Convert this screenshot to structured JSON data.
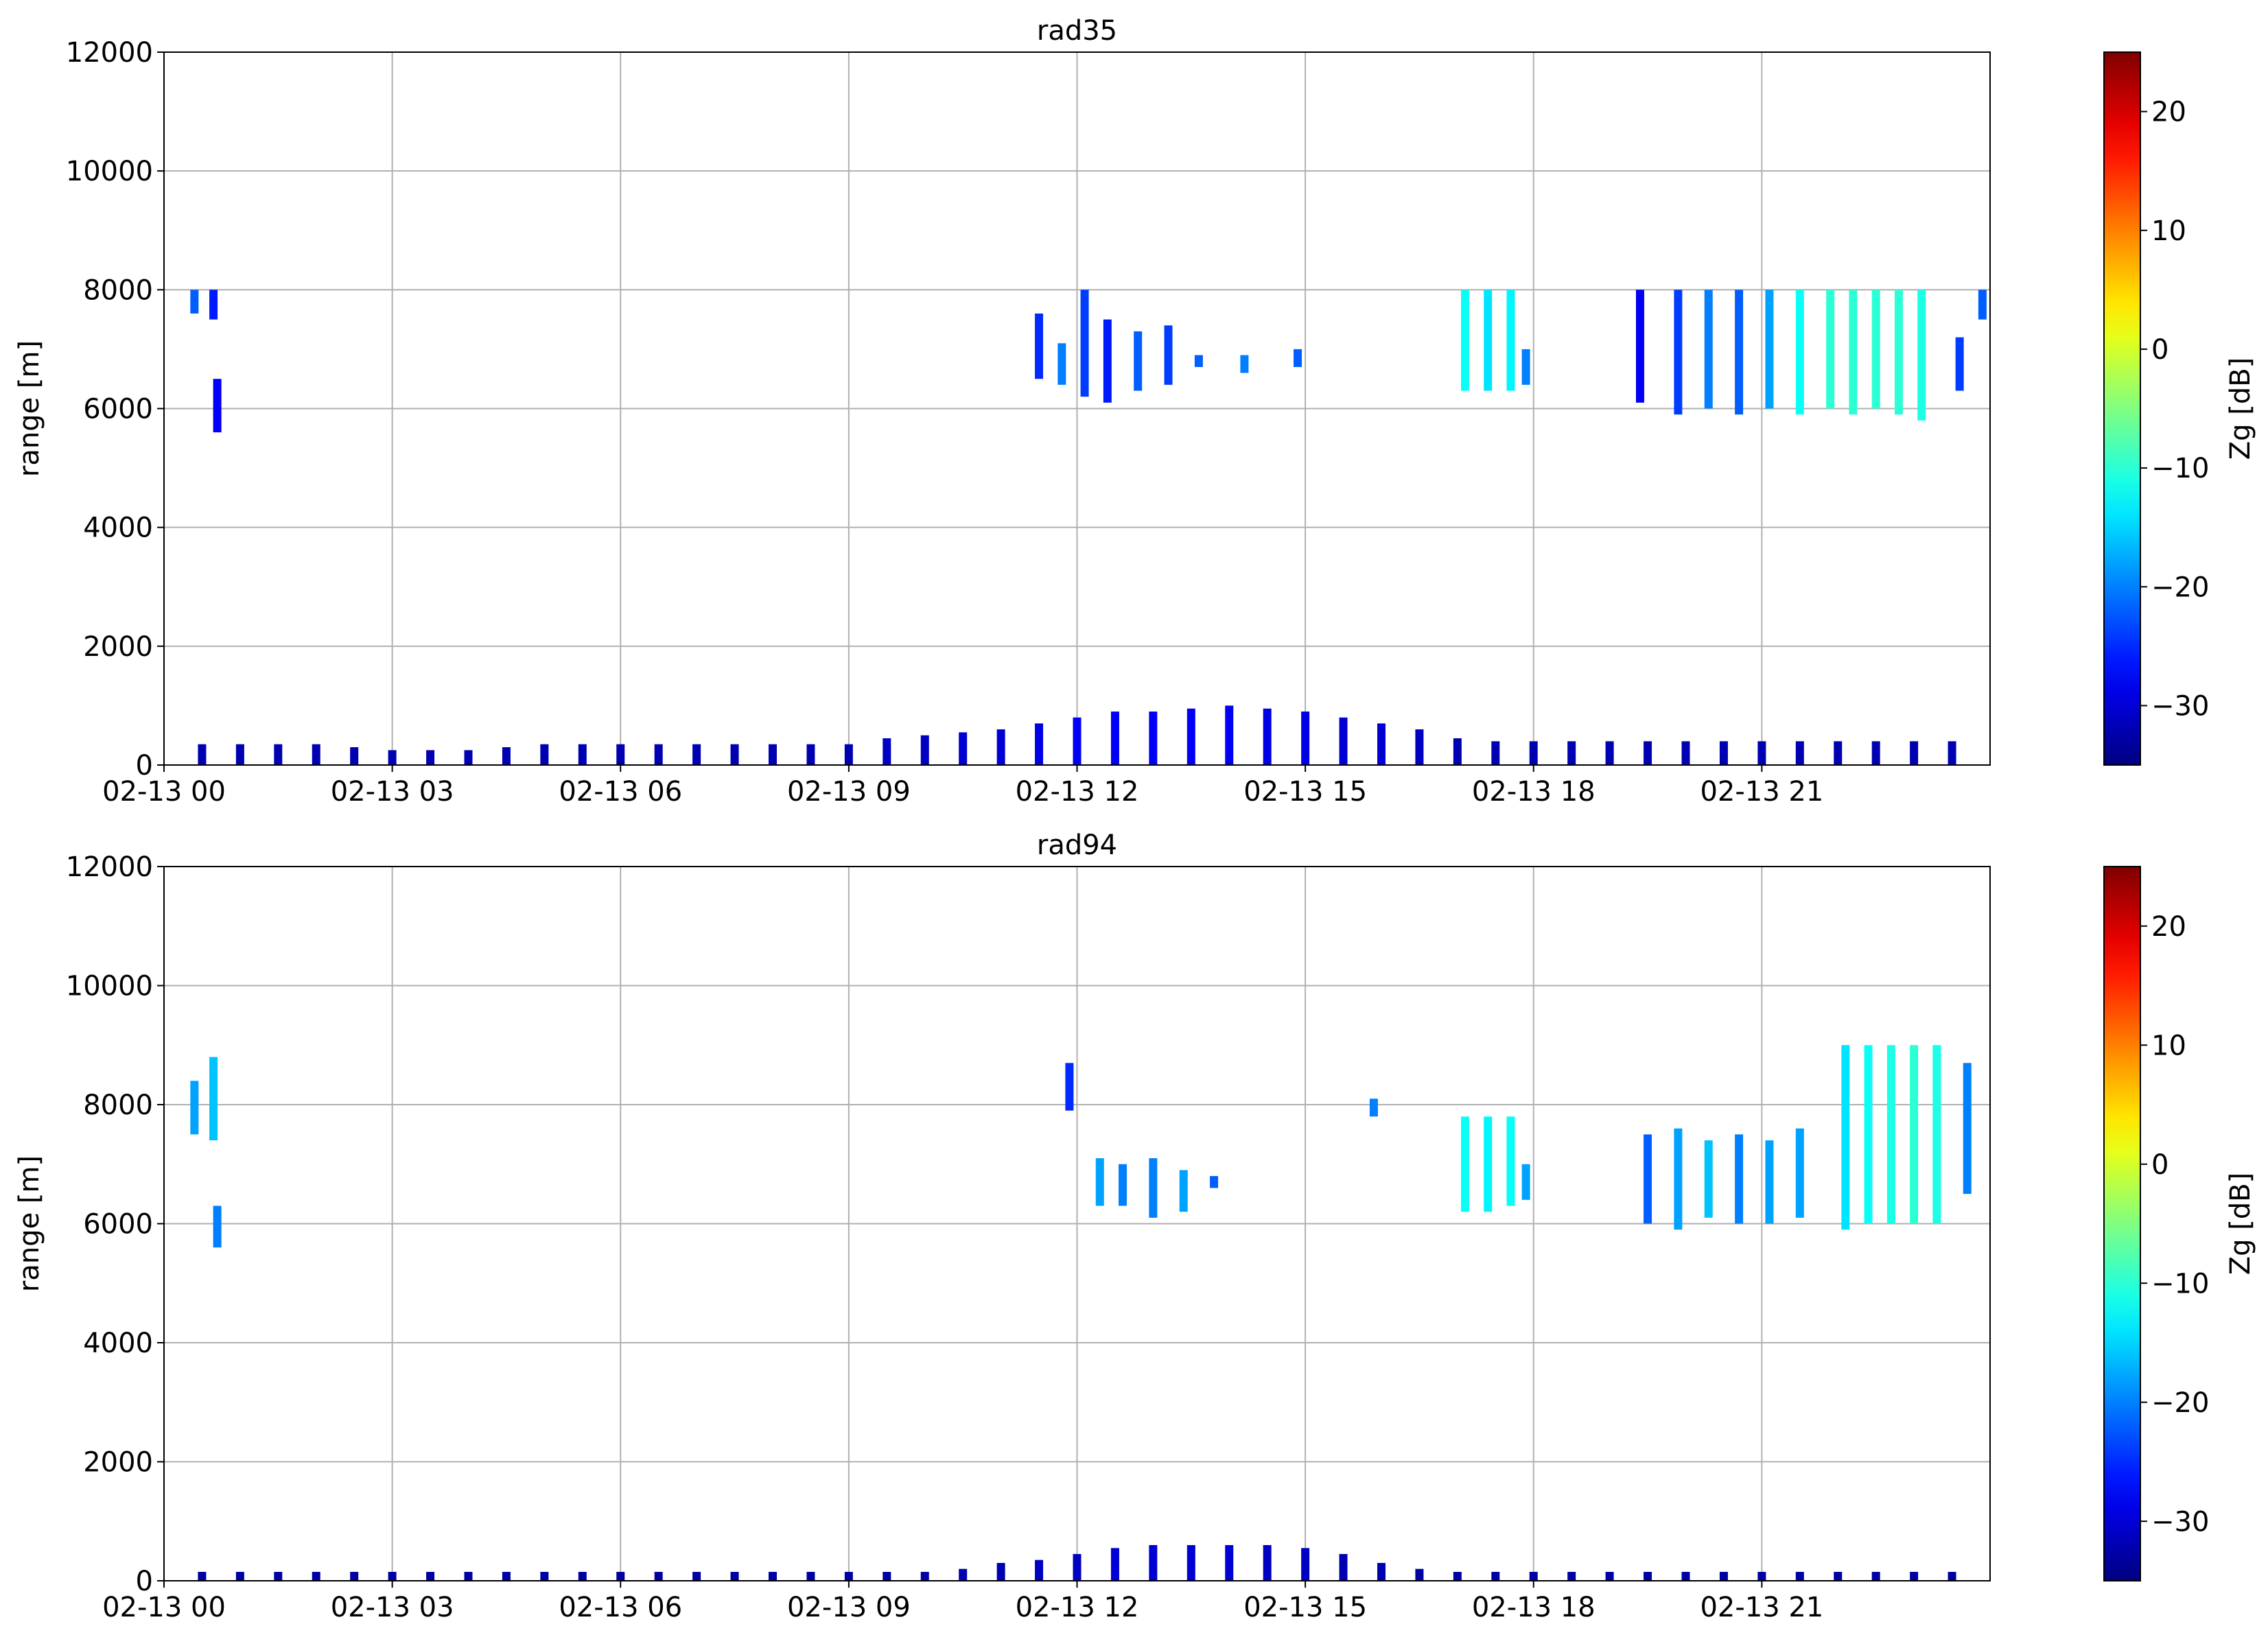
{
  "chart_data": [
    {
      "type": "heatmap",
      "title": "rad35",
      "y_label": "range [m]",
      "colorbar_label": "Zg [dB]",
      "colormap": "jet",
      "grid": true,
      "xlim": [
        0,
        24
      ],
      "xticks": [
        {
          "value": 0,
          "label": "02-13 00"
        },
        {
          "value": 3,
          "label": "02-13 03"
        },
        {
          "value": 6,
          "label": "02-13 06"
        },
        {
          "value": 9,
          "label": "02-13 09"
        },
        {
          "value": 12,
          "label": "02-13 12"
        },
        {
          "value": 15,
          "label": "02-13 15"
        },
        {
          "value": 18,
          "label": "02-13 18"
        },
        {
          "value": 21,
          "label": "02-13 21"
        }
      ],
      "ylim": [
        0,
        12000
      ],
      "yticks": [
        0,
        2000,
        4000,
        6000,
        8000,
        10000,
        12000
      ],
      "zlim": [
        -35,
        25
      ],
      "zticks": [
        {
          "value": -30,
          "label": "−30"
        },
        {
          "value": -20,
          "label": "−20"
        },
        {
          "value": -10,
          "label": "−10"
        },
        0,
        10,
        20
      ],
      "x": [
        0.5,
        1,
        1.5,
        2,
        2.5,
        3,
        3.5,
        4,
        4.5,
        5,
        5.5,
        6,
        6.5,
        7,
        7.5,
        8,
        8.5,
        9,
        9.5,
        10,
        10.5,
        11,
        11.5,
        12,
        12.5,
        13,
        13.5,
        14,
        14.5,
        15,
        15.5,
        16,
        16.5,
        17,
        17.5,
        18,
        18.5,
        19,
        19.5,
        20,
        20.5,
        21,
        21.5,
        22,
        22.5,
        23,
        23.5,
        0.4,
        0.65,
        0.7,
        11.5,
        11.8,
        12.1,
        12.4,
        12.8,
        13.2,
        13.6,
        14.2,
        14.9,
        17.1,
        17.4,
        17.7,
        17.9,
        19.4,
        19.9,
        20.3,
        20.7,
        21.1,
        21.5,
        21.9,
        22.2,
        22.5,
        22.8,
        23.1,
        23.6,
        23.9
      ],
      "y0": [
        0,
        0,
        0,
        0,
        0,
        0,
        0,
        0,
        0,
        0,
        0,
        0,
        0,
        0,
        0,
        0,
        0,
        0,
        0,
        0,
        0,
        0,
        0,
        0,
        0,
        0,
        0,
        0,
        0,
        0,
        0,
        0,
        0,
        0,
        0,
        0,
        0,
        0,
        0,
        0,
        0,
        0,
        0,
        0,
        0,
        0,
        0,
        7600,
        7500,
        5600,
        6500,
        6400,
        6200,
        6100,
        6300,
        6400,
        6700,
        6600,
        6700,
        6300,
        6300,
        6300,
        6400,
        6100,
        5900,
        6000,
        5900,
        6000,
        5900,
        6000,
        5900,
        6000,
        5900,
        5800,
        6300,
        7500
      ],
      "y1": [
        350,
        350,
        350,
        350,
        300,
        250,
        250,
        250,
        300,
        350,
        350,
        350,
        350,
        350,
        350,
        350,
        350,
        350,
        450,
        500,
        550,
        600,
        700,
        800,
        900,
        900,
        950,
        1000,
        950,
        900,
        800,
        700,
        600,
        450,
        400,
        400,
        400,
        400,
        400,
        400,
        400,
        400,
        400,
        400,
        400,
        400,
        400,
        8000,
        8000,
        6500,
        7600,
        7100,
        8000,
        7500,
        7300,
        7400,
        6900,
        6900,
        7000,
        8000,
        8000,
        8000,
        7000,
        8000,
        8000,
        8000,
        8000,
        8000,
        8000,
        8000,
        8000,
        8000,
        8000,
        8000,
        7200,
        8000
      ],
      "values": [
        -32,
        -32,
        -32,
        -32,
        -32,
        -32,
        -32,
        -32,
        -32,
        -32,
        -32,
        -32,
        -32,
        -32,
        -32,
        -32,
        -32,
        -32,
        -31,
        -31,
        -30,
        -30,
        -29,
        -28,
        -28,
        -28,
        -28,
        -28,
        -29,
        -29,
        -30,
        -30,
        -31,
        -32,
        -32,
        -32,
        -32,
        -32,
        -32,
        -32,
        -32,
        -32,
        -32,
        -32,
        -32,
        -32,
        -32,
        -22,
        -26,
        -28,
        -25,
        -20,
        -24,
        -26,
        -22,
        -24,
        -22,
        -20,
        -22,
        -12,
        -14,
        -13,
        -20,
        -28,
        -24,
        -20,
        -22,
        -18,
        -12,
        -10,
        -10,
        -10,
        -10,
        -11,
        -24,
        -22
      ]
    },
    {
      "type": "heatmap",
      "title": "rad94",
      "y_label": "range [m]",
      "colorbar_label": "Zg [dB]",
      "colormap": "jet",
      "grid": true,
      "xlim": [
        0,
        24
      ],
      "xticks": [
        {
          "value": 0,
          "label": "02-13 00"
        },
        {
          "value": 3,
          "label": "02-13 03"
        },
        {
          "value": 6,
          "label": "02-13 06"
        },
        {
          "value": 9,
          "label": "02-13 09"
        },
        {
          "value": 12,
          "label": "02-13 12"
        },
        {
          "value": 15,
          "label": "02-13 15"
        },
        {
          "value": 18,
          "label": "02-13 18"
        },
        {
          "value": 21,
          "label": "02-13 21"
        }
      ],
      "ylim": [
        0,
        12000
      ],
      "yticks": [
        0,
        2000,
        4000,
        6000,
        8000,
        10000,
        12000
      ],
      "zlim": [
        -35,
        25
      ],
      "zticks": [
        {
          "value": -30,
          "label": "−30"
        },
        {
          "value": -20,
          "label": "−20"
        },
        {
          "value": -10,
          "label": "−10"
        },
        0,
        10,
        20
      ],
      "x": [
        0.5,
        1,
        1.5,
        2,
        2.5,
        3,
        3.5,
        4,
        4.5,
        5,
        5.5,
        6,
        6.5,
        7,
        7.5,
        8,
        8.5,
        9,
        9.5,
        10,
        10.5,
        11,
        11.5,
        12,
        12.5,
        13,
        13.5,
        14,
        14.5,
        15,
        15.5,
        16,
        16.5,
        17,
        17.5,
        18,
        18.5,
        19,
        19.5,
        20,
        20.5,
        21,
        21.5,
        22,
        22.5,
        23,
        23.5,
        0.4,
        0.65,
        0.7,
        11.9,
        12.3,
        12.6,
        13.0,
        13.4,
        13.8,
        15.9,
        17.1,
        17.4,
        17.7,
        17.9,
        19.5,
        19.9,
        20.3,
        20.7,
        21.1,
        21.5,
        22.1,
        22.4,
        22.7,
        23.0,
        23.3,
        23.7
      ],
      "y0": [
        0,
        0,
        0,
        0,
        0,
        0,
        0,
        0,
        0,
        0,
        0,
        0,
        0,
        0,
        0,
        0,
        0,
        0,
        0,
        0,
        0,
        0,
        0,
        0,
        0,
        0,
        0,
        0,
        0,
        0,
        0,
        0,
        0,
        0,
        0,
        0,
        0,
        0,
        0,
        0,
        0,
        0,
        0,
        0,
        0,
        0,
        0,
        7500,
        7400,
        5600,
        7900,
        6300,
        6300,
        6100,
        6200,
        6600,
        7800,
        6200,
        6200,
        6300,
        6400,
        6000,
        5900,
        6100,
        6000,
        6000,
        6100,
        5900,
        6000,
        6000,
        6000,
        6000,
        6500
      ],
      "y1": [
        150,
        150,
        150,
        150,
        150,
        150,
        150,
        150,
        150,
        150,
        150,
        150,
        150,
        150,
        150,
        150,
        150,
        150,
        150,
        150,
        200,
        300,
        350,
        450,
        550,
        600,
        600,
        600,
        600,
        550,
        450,
        300,
        200,
        150,
        150,
        150,
        150,
        150,
        150,
        150,
        150,
        150,
        150,
        150,
        150,
        150,
        150,
        8400,
        8800,
        6300,
        8700,
        7100,
        7000,
        7100,
        6900,
        6800,
        8100,
        7800,
        7800,
        7800,
        7000,
        7500,
        7600,
        7400,
        7500,
        7400,
        7600,
        9000,
        9000,
        9000,
        9000,
        9000,
        8700
      ],
      "values": [
        -33,
        -33,
        -33,
        -33,
        -33,
        -33,
        -33,
        -33,
        -33,
        -33,
        -33,
        -33,
        -33,
        -33,
        -33,
        -33,
        -33,
        -33,
        -33,
        -33,
        -32,
        -32,
        -31,
        -31,
        -30,
        -30,
        -30,
        -30,
        -31,
        -31,
        -32,
        -32,
        -33,
        -33,
        -33,
        -33,
        -33,
        -33,
        -33,
        -33,
        -33,
        -33,
        -33,
        -33,
        -33,
        -33,
        -33,
        -18,
        -16,
        -20,
        -25,
        -18,
        -20,
        -20,
        -18,
        -22,
        -20,
        -12,
        -13,
        -12,
        -18,
        -22,
        -18,
        -16,
        -20,
        -18,
        -18,
        -14,
        -12,
        -11,
        -10,
        -11,
        -20
      ]
    }
  ]
}
